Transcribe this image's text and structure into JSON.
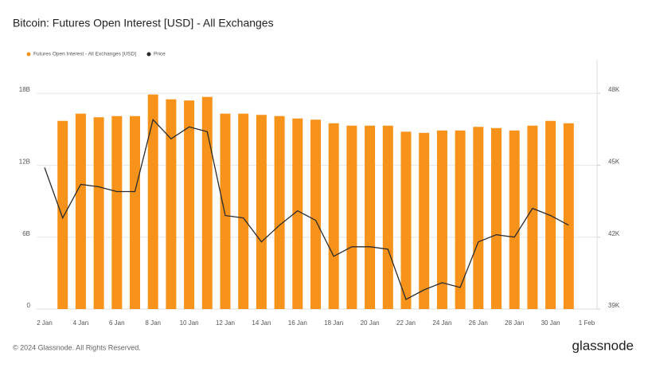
{
  "chart_data": {
    "type": "bar",
    "title": "Bitcoin: Futures Open Interest [USD] - All Exchanges",
    "categories": [
      "2 Jan",
      null,
      "4 Jan",
      null,
      "6 Jan",
      null,
      "8 Jan",
      null,
      "10 Jan",
      null,
      "12 Jan",
      null,
      "14 Jan",
      null,
      "16 Jan",
      null,
      "18 Jan",
      null,
      "20 Jan",
      null,
      "22 Jan",
      null,
      "24 Jan",
      null,
      "26 Jan",
      null,
      "28 Jan",
      null,
      "30 Jan",
      null,
      "1 Feb"
    ],
    "series": [
      {
        "name": "Futures Open Interest - All Exchanges [USD]",
        "type": "bar",
        "color": "#f7931a",
        "values": [
          null,
          15.7,
          16.3,
          16.0,
          16.1,
          16.1,
          17.9,
          17.5,
          17.4,
          17.7,
          16.3,
          16.3,
          16.2,
          16.1,
          15.9,
          15.8,
          15.5,
          15.3,
          15.3,
          15.3,
          14.8,
          14.7,
          14.9,
          14.9,
          15.2,
          15.1,
          14.9,
          15.3,
          15.7,
          15.5,
          null
        ]
      },
      {
        "name": "Price",
        "type": "line",
        "color": "#2b2b2b",
        "axis": "y2",
        "values": [
          44900,
          42800,
          44200,
          44100,
          43900,
          43900,
          46900,
          46100,
          46600,
          46400,
          42900,
          42800,
          41800,
          42500,
          43100,
          42700,
          41200,
          41600,
          41600,
          41500,
          39400,
          39800,
          40100,
          39900,
          41800,
          42100,
          42000,
          43200,
          42900,
          42500,
          null
        ]
      }
    ],
    "ylim": [
      0,
      20.8
    ],
    "yticks": [
      0,
      {
        "value": 6,
        "label": "6B"
      },
      {
        "value": 12,
        "label": "12B"
      },
      {
        "value": 18,
        "label": "18B"
      }
    ],
    "y2lim": [
      39000,
      49400
    ],
    "y2ticks": [
      {
        "value": 39000,
        "label": "39K"
      },
      {
        "value": 42000,
        "label": "42K"
      },
      {
        "value": 45000,
        "label": "45K"
      },
      {
        "value": 48000,
        "label": "48K"
      }
    ],
    "grid": true,
    "legend": "top-left"
  },
  "footer": {
    "copyright": "© 2024 Glassnode. All Rights Reserved.",
    "logo": "glassnode"
  }
}
